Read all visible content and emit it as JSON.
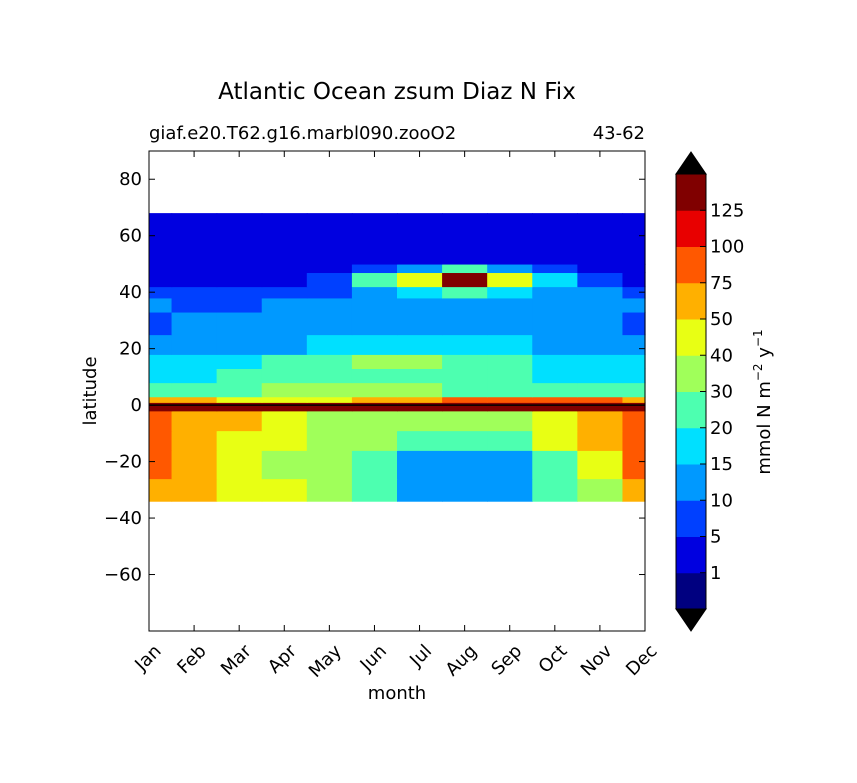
{
  "chart_data": {
    "type": "heatmap",
    "title": "Atlantic Ocean zsum Diaz N Fix",
    "subtitle_left": "giaf.e20.T62.g16.marbl090.zooO2",
    "subtitle_right": "43-62",
    "xlabel": "month",
    "ylabel": "latitude",
    "x_ticks": [
      "Jan",
      "Feb",
      "Mar",
      "Apr",
      "May",
      "Jun",
      "Jul",
      "Aug",
      "Sep",
      "Oct",
      "Nov",
      "Dec"
    ],
    "ylim": [
      -80,
      90
    ],
    "y_ticks": [
      80,
      60,
      40,
      20,
      0,
      -20,
      -40,
      -60
    ],
    "y_tick_labels": [
      "80",
      "60",
      "40",
      "20",
      "0",
      "−20",
      "−40",
      "−60"
    ],
    "data_lat_range": [
      -34,
      68
    ],
    "colorbar": {
      "label_text": "mmol N m",
      "label_sup1": "−2",
      "label_mid": " y",
      "label_sup2": "−1",
      "extend": "both",
      "levels": [
        0,
        1,
        5,
        10,
        15,
        20,
        30,
        40,
        50,
        75,
        100,
        125,
        150
      ],
      "tick_labels": [
        "1",
        "5",
        "10",
        "15",
        "20",
        "30",
        "40",
        "50",
        "75",
        "100",
        "125"
      ],
      "colors": [
        "#000080",
        "#0000e0",
        "#0040ff",
        "#0099ff",
        "#00e0ff",
        "#4dffb0",
        "#a0ff5a",
        "#e8ff14",
        "#ffb000",
        "#ff5800",
        "#e80000",
        "#800000"
      ],
      "extend_low_color": "#000000",
      "extend_high_color": "#000000"
    },
    "regions": [
      {
        "band": [
          -34,
          -26
        ],
        "values": [
          50,
          50,
          40,
          40,
          30,
          20,
          10,
          10,
          10,
          20,
          30,
          50
        ]
      },
      {
        "band": [
          -26,
          -16
        ],
        "values": [
          75,
          50,
          40,
          30,
          30,
          20,
          10,
          10,
          10,
          20,
          40,
          75
        ]
      },
      {
        "band": [
          -16,
          -9
        ],
        "values": [
          75,
          50,
          40,
          40,
          30,
          30,
          20,
          20,
          20,
          40,
          50,
          75
        ]
      },
      {
        "band": [
          -9,
          -2
        ],
        "values": [
          75,
          50,
          50,
          40,
          30,
          30,
          30,
          30,
          30,
          40,
          50,
          75
        ]
      },
      {
        "band": [
          -2,
          1
        ],
        "values": [
          125,
          125,
          125,
          125,
          125,
          125,
          125,
          125,
          125,
          125,
          125,
          125
        ]
      },
      {
        "band": [
          1,
          3
        ],
        "values": [
          50,
          50,
          40,
          40,
          40,
          50,
          50,
          75,
          75,
          75,
          75,
          50
        ]
      },
      {
        "band": [
          3,
          8
        ],
        "values": [
          20,
          20,
          20,
          30,
          30,
          30,
          30,
          20,
          20,
          20,
          20,
          20
        ]
      },
      {
        "band": [
          8,
          13
        ],
        "values": [
          15,
          15,
          20,
          20,
          20,
          20,
          20,
          20,
          20,
          15,
          15,
          15
        ]
      },
      {
        "band": [
          13,
          18
        ],
        "values": [
          15,
          15,
          15,
          20,
          20,
          30,
          30,
          20,
          20,
          15,
          15,
          15
        ]
      },
      {
        "band": [
          18,
          25
        ],
        "values": [
          10,
          10,
          10,
          10,
          15,
          15,
          15,
          15,
          15,
          10,
          10,
          10
        ]
      },
      {
        "band": [
          25,
          33
        ],
        "values": [
          5,
          10,
          10,
          10,
          10,
          10,
          10,
          10,
          10,
          10,
          10,
          5
        ]
      },
      {
        "band": [
          33,
          38
        ],
        "values": [
          10,
          5,
          5,
          10,
          10,
          10,
          10,
          10,
          10,
          10,
          10,
          10
        ]
      },
      {
        "band": [
          38,
          42
        ],
        "values": [
          5,
          5,
          5,
          5,
          5,
          10,
          15,
          20,
          15,
          10,
          10,
          5
        ]
      },
      {
        "band": [
          42,
          47
        ],
        "values": [
          1,
          1,
          1,
          1,
          5,
          20,
          40,
          125,
          40,
          15,
          5,
          1
        ]
      },
      {
        "band": [
          47,
          50
        ],
        "values": [
          1,
          1,
          1,
          1,
          1,
          5,
          10,
          20,
          10,
          5,
          1,
          1
        ]
      },
      {
        "band": [
          50,
          68
        ],
        "values": [
          1,
          1,
          1,
          1,
          1,
          1,
          1,
          1,
          1,
          1,
          1,
          1
        ]
      }
    ]
  }
}
